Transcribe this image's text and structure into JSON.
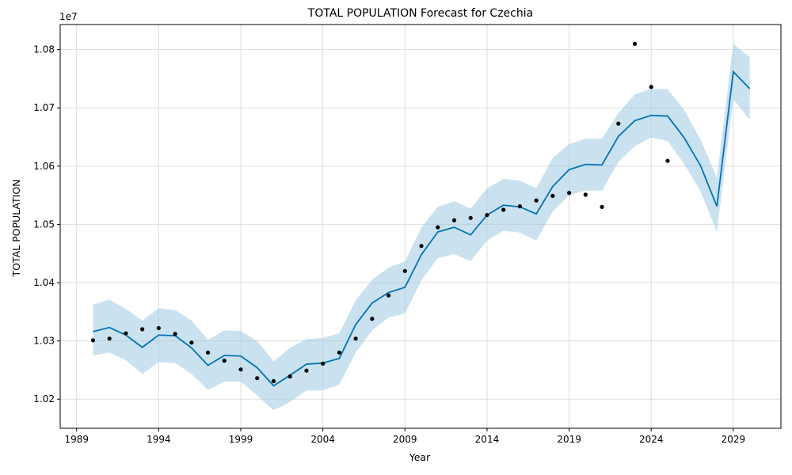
{
  "chart_data": {
    "type": "line",
    "title": "TOTAL POPULATION Forecast for Czechia",
    "xlabel": "Year",
    "ylabel": "TOTAL POPULATION",
    "y_scale_label": "1e7",
    "xlim": [
      1988,
      2031.9
    ],
    "ylim": [
      10150000,
      10843000
    ],
    "x_ticks": [
      1989,
      1994,
      1999,
      2004,
      2009,
      2014,
      2019,
      2024,
      2029
    ],
    "y_ticks": [
      10200000,
      10300000,
      10400000,
      10500000,
      10600000,
      10700000,
      10800000
    ],
    "y_tick_labels": [
      "1.02",
      "1.03",
      "1.04",
      "1.05",
      "1.06",
      "1.07",
      "1.08"
    ],
    "grid": true,
    "colors": {
      "forecast": "#0072B2",
      "interval": "#9ecae1",
      "actual": "#000000"
    },
    "actual": {
      "x": [
        1990,
        1991,
        1992,
        1993,
        1994,
        1995,
        1996,
        1997,
        1998,
        1999,
        2000,
        2001,
        2002,
        2003,
        2004,
        2005,
        2006,
        2007,
        2008,
        2009,
        2010,
        2011,
        2012,
        2013,
        2014,
        2015,
        2016,
        2017,
        2018,
        2019,
        2020,
        2021,
        2022,
        2023,
        2024,
        2025
      ],
      "y": [
        10301000,
        10304000,
        10313000,
        10320000,
        10322000,
        10312000,
        10297000,
        10280000,
        10266000,
        10251000,
        10236000,
        10231000,
        10239000,
        10249000,
        10261000,
        10280000,
        10304000,
        10338000,
        10378000,
        10420000,
        10463000,
        10495000,
        10507000,
        10511000,
        10516000,
        10525000,
        10531000,
        10541000,
        10549000,
        10554000,
        10551000,
        10530000,
        10673000,
        10810000,
        10736000,
        10609000
      ]
    },
    "forecast": {
      "x": [
        1990,
        1991,
        1992,
        1993,
        1994,
        1995,
        1996,
        1997,
        1998,
        1999,
        2000,
        2001,
        2002,
        2003,
        2004,
        2005,
        2006,
        2007,
        2008,
        2009,
        2010,
        2011,
        2012,
        2013,
        2014,
        2015,
        2016,
        2017,
        2018,
        2019,
        2020,
        2021,
        2022,
        2023,
        2024,
        2025,
        2026,
        2027,
        2028,
        2029,
        2030
      ],
      "yhat": [
        10316000,
        10323000,
        10310000,
        10289000,
        10310000,
        10309000,
        10288000,
        10258000,
        10275000,
        10274000,
        10254000,
        10223000,
        10241000,
        10260000,
        10262000,
        10270000,
        10328000,
        10365000,
        10383000,
        10392000,
        10448000,
        10487000,
        10495000,
        10482000,
        10516000,
        10533000,
        10530000,
        10518000,
        10565000,
        10594000,
        10603000,
        10602000,
        10651000,
        10678000,
        10687000,
        10686000,
        10649000,
        10601000,
        10531000,
        10762000,
        10733000
      ],
      "lower": [
        10275000,
        10280000,
        10267000,
        10243000,
        10264000,
        10262000,
        10243000,
        10216000,
        10230000,
        10230000,
        10206000,
        10181000,
        10195000,
        10215000,
        10215000,
        10225000,
        10280000,
        10318000,
        10340000,
        10347000,
        10404000,
        10442000,
        10449000,
        10437000,
        10472000,
        10489000,
        10486000,
        10472000,
        10522000,
        10550000,
        10558000,
        10558000,
        10607000,
        10634000,
        10649000,
        10643000,
        10604000,
        10557000,
        10487000,
        10715000,
        10680000
      ],
      "upper": [
        10362000,
        10371000,
        10355000,
        10335000,
        10356000,
        10353000,
        10335000,
        10302000,
        10318000,
        10317000,
        10300000,
        10265000,
        10288000,
        10303000,
        10305000,
        10313000,
        10370000,
        10405000,
        10426000,
        10436000,
        10495000,
        10530000,
        10540000,
        10527000,
        10562000,
        10578000,
        10575000,
        10562000,
        10614000,
        10638000,
        10647000,
        10647000,
        10691000,
        10723000,
        10733000,
        10732000,
        10697000,
        10646000,
        10580000,
        10810000,
        10787000
      ]
    }
  }
}
